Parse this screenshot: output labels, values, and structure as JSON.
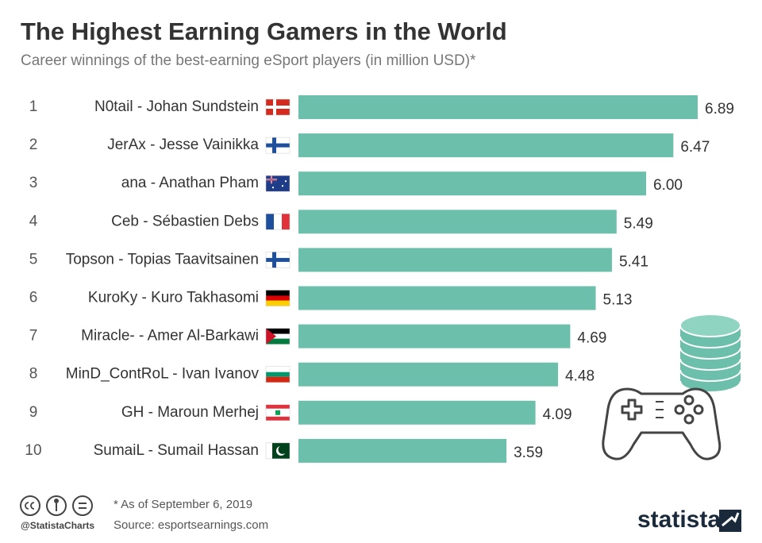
{
  "chart_data": {
    "type": "bar",
    "orientation": "horizontal",
    "title": "The Highest Earning Gamers in the World",
    "subtitle": "Career winnings of the best-earning eSport players (in million USD)*",
    "ranks": [
      1,
      2,
      3,
      4,
      5,
      6,
      7,
      8,
      9,
      10
    ],
    "categories": [
      "N0tail - Johan Sundstein",
      "JerAx - Jesse Vainikka",
      "ana - Anathan Pham",
      "Ceb - Sébastien Debs",
      "Topson - Topias Taavitsainen",
      "KuroKy - Kuro Takhasomi",
      "Miracle- - Amer Al-Barkawi",
      "MinD_ContRoL - Ivan Ivanov",
      "GH - Maroun Merhej",
      "SumaiL - Sumail Hassan"
    ],
    "values": [
      6.89,
      6.47,
      6.0,
      5.49,
      5.41,
      5.13,
      4.69,
      4.48,
      4.09,
      3.59
    ],
    "value_labels": [
      "6.89",
      "6.47",
      "6.00",
      "5.49",
      "5.41",
      "5.13",
      "4.69",
      "4.48",
      "4.09",
      "3.59"
    ],
    "color": "#6cc0ab",
    "note": "* As of September 6, 2019",
    "source": "Source: esportsearnings.com",
    "handle": "@StatistaCharts",
    "brand": "statista"
  }
}
